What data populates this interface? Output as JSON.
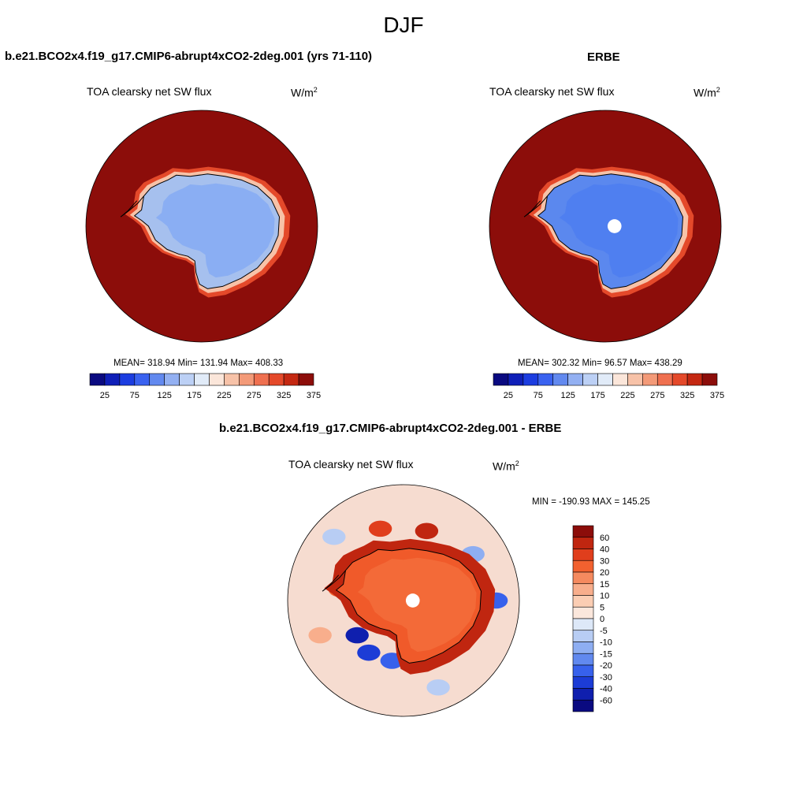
{
  "figure": {
    "title": "DJF"
  },
  "panels": [
    {
      "id": "model",
      "title": "b.e21.BCO2x4.f19_g17.CMIP6-abrupt4xCO2-2deg.001 (yrs 71-110)",
      "variable": "TOA clearsky net SW flux",
      "units_base": "W/m",
      "units_exp": "2",
      "stats": "MEAN= 318.94  Min= 131.94  Max= 408.33",
      "region": "Antarctica (south polar stereographic)",
      "colors": {
        "ocean": "#8c0d0a",
        "icesheet": "#a6c0ee",
        "interior": "#8aaef3"
      }
    },
    {
      "id": "obs",
      "title": "ERBE",
      "variable": "TOA clearsky net SW flux",
      "units_base": "W/m",
      "units_exp": "2",
      "stats": "MEAN= 302.32  Min=  96.57  Max= 438.29",
      "region": "Antarctica (south polar stereographic)",
      "colors": {
        "ocean": "#8c0d0a",
        "icesheet": "#5b88ee",
        "interior": "#4f7ff0"
      }
    },
    {
      "id": "diff",
      "title": "b.e21.BCO2x4.f19_g17.CMIP6-abrupt4xCO2-2deg.001 - ERBE",
      "variable": "TOA clearsky net SW flux",
      "units_base": "W/m",
      "units_exp": "2",
      "stats": "MIN = -190.93 MAX = 145.25",
      "region": "Antarctica (south polar stereographic)",
      "colors": {
        "ocean": "#f6dcd0",
        "icesheet": "#f05a2a",
        "interior": "#f36a38"
      }
    }
  ],
  "colorbars": {
    "main": {
      "labels": [
        "25",
        "75",
        "125",
        "175",
        "225",
        "275",
        "325",
        "375"
      ],
      "colors": [
        "#0a0a80",
        "#0f1fb8",
        "#1c3de0",
        "#3a62f0",
        "#6289ef",
        "#93b0f2",
        "#bcd0f5",
        "#e1ebf8",
        "#fbe6da",
        "#f7c2a8",
        "#f39a78",
        "#ef7050",
        "#e4492a",
        "#c42812",
        "#8c0d0a"
      ]
    },
    "diff": {
      "labels": [
        "60",
        "40",
        "30",
        "20",
        "15",
        "10",
        "5",
        "0",
        "-5",
        "-10",
        "-15",
        "-20",
        "-30",
        "-40",
        "-60"
      ],
      "colors": [
        "#8c0d0a",
        "#c02610",
        "#e03e1c",
        "#f2612f",
        "#f58a5f",
        "#f8ae8c",
        "#fbcdb3",
        "#fbe7dc",
        "#dde8f8",
        "#b8cdf4",
        "#8eaef2",
        "#6189ef",
        "#3761ec",
        "#1c3cd6",
        "#0f1fae",
        "#0a0a80"
      ]
    }
  }
}
